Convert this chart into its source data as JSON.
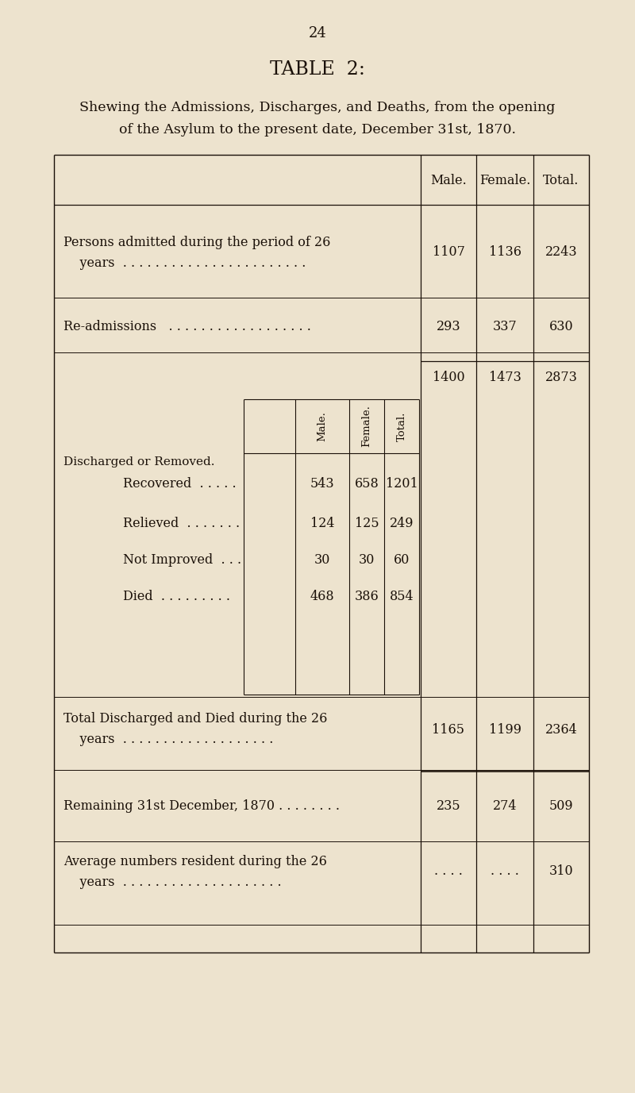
{
  "page_number": "24",
  "title": "TABLE  2:",
  "subtitle_line1": "Shewing the Admissions, Discharges, and Deaths, from the opening",
  "subtitle_line2": "of the Asylum to the present date, December 31st, 1870.",
  "bg_color": "#ede3ce",
  "text_color": "#1a1008",
  "col_headers": [
    "Male.",
    "Female.",
    "Total."
  ],
  "discharged_label": "Discharged or Removed.",
  "discharged_rows": [
    {
      "label": "Recovered",
      "dots": "       ",
      "male": "543",
      "female": "658",
      "total": "1201"
    },
    {
      "label": "Relieved",
      "dots": "         ",
      "male": "124",
      "female": "125",
      "total": "249"
    },
    {
      "label": "Not Improved",
      "dots": "     ",
      "male": "30",
      "female": "30",
      "total": "60"
    },
    {
      "label": "Died",
      "dots": "            ",
      "male": "468",
      "female": "386",
      "total": "854"
    }
  ]
}
